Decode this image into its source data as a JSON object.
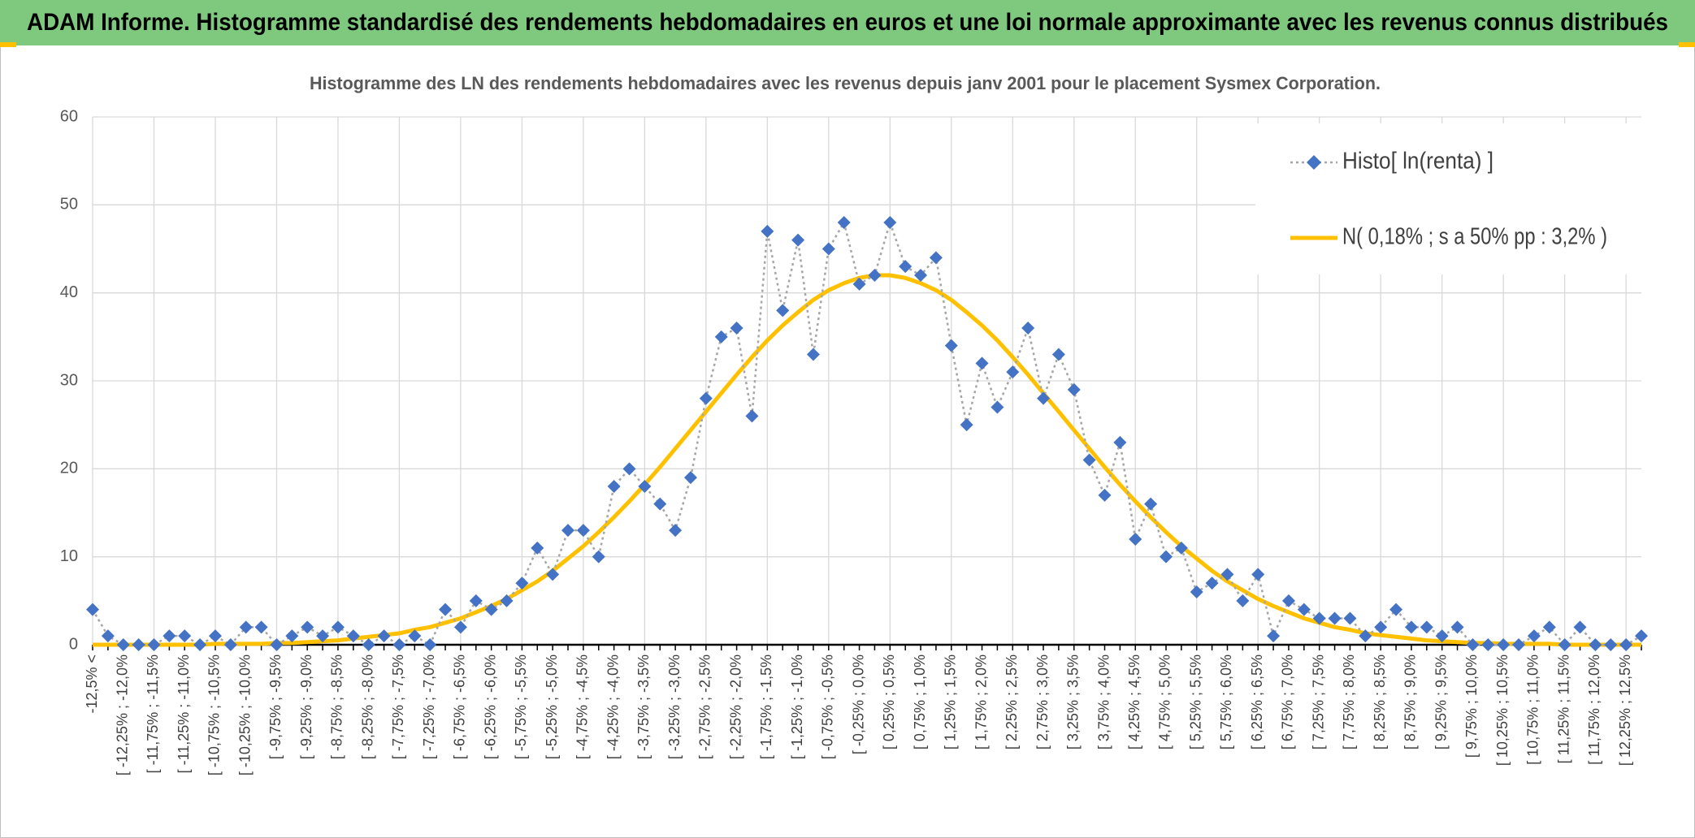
{
  "chart_data": {
    "type": "line",
    "title": "ADAM Informe. Histogramme standardisé des rendements hebdomadaires en euros et une loi normale approximante avec les revenus connus distribués",
    "subtitle": "Histogramme des LN des rendements hebdomadaires avec les revenus depuis janv 2001 pour le placement Sysmex Corporation.",
    "categories": [
      "-12,5% <",
      null,
      "[ -12,25% ; -12,0%",
      null,
      "[ -11,75% ; -11,5%",
      null,
      "[ -11,25% ; -11,0%",
      null,
      "[ -10,75% ; -10,5%",
      null,
      "[ -10,25% ; -10,0%",
      null,
      "[ -9,75% ; -9,5%",
      null,
      "[ -9,25% ; -9,0%",
      null,
      "[ -8,75% ; -8,5%",
      null,
      "[ -8,25% ; -8,0%",
      null,
      "[ -7,75% ; -7,5%",
      null,
      "[ -7,25% ; -7,0%",
      null,
      "[ -6,75% ; -6,5%",
      null,
      "[ -6,25% ; -6,0%",
      null,
      "[ -5,75% ; -5,5%",
      null,
      "[ -5,25% ; -5,0%",
      null,
      "[ -4,75% ; -4,5%",
      null,
      "[ -4,25% ; -4,0%",
      null,
      "[ -3,75% ; -3,5%",
      null,
      "[ -3,25% ; -3,0%",
      null,
      "[ -2,75% ; -2,5%",
      null,
      "[ -2,25% ; -2,0%",
      null,
      "[ -1,75% ; -1,5%",
      null,
      "[ -1,25% ; -1,0%",
      null,
      "[ -0,75% ; -0,5%",
      null,
      "[ -0,25% ; 0,0%",
      null,
      "[ 0,25% ; 0,5%",
      null,
      "[ 0,75% ; 1,0%",
      null,
      "[ 1,25% ; 1,5%",
      null,
      "[ 1,75% ; 2,0%",
      null,
      "[ 2,25% ; 2,5%",
      null,
      "[ 2,75% ; 3,0%",
      null,
      "[ 3,25% ; 3,5%",
      null,
      "[ 3,75% ; 4,0%",
      null,
      "[ 4,25% ; 4,5%",
      null,
      "[ 4,75% ; 5,0%",
      null,
      "[ 5,25% ; 5,5%",
      null,
      "[ 5,75% ; 6,0%",
      null,
      "[ 6,25% ; 6,5%",
      null,
      "[ 6,75% ; 7,0%",
      null,
      "[ 7,25% ; 7,5%",
      null,
      "[ 7,75% ; 8,0%",
      null,
      "[ 8,25% ; 8,5%",
      null,
      "[ 8,75% ; 9,0%",
      null,
      "[ 9,25% ; 9,5%",
      null,
      "[ 9,75% ; 10,0%",
      null,
      "[ 10,25% ; 10,5%",
      null,
      "[ 10,75% ; 11,0%",
      null,
      "[ 11,25% ; 11,5%",
      null,
      "[ 11,75% ; 12,0%",
      null,
      "[ 12,25% ; 12,5%",
      null
    ],
    "series": [
      {
        "name": "Histo[ ln(renta) ]",
        "color": "#4472c4",
        "line_color": "#a6a6a6",
        "line_style": "dotted",
        "marker": "diamond",
        "values": [
          4,
          1,
          0,
          0,
          0,
          1,
          1,
          0,
          1,
          0,
          2,
          2,
          0,
          1,
          2,
          1,
          2,
          1,
          0,
          1,
          0,
          1,
          0,
          4,
          2,
          5,
          4,
          5,
          7,
          11,
          8,
          13,
          13,
          10,
          18,
          20,
          18,
          16,
          13,
          19,
          28,
          35,
          36,
          26,
          47,
          38,
          46,
          33,
          45,
          48,
          41,
          42,
          48,
          43,
          42,
          44,
          34,
          25,
          32,
          27,
          31,
          36,
          28,
          33,
          29,
          21,
          17,
          23,
          12,
          16,
          10,
          11,
          6,
          7,
          8,
          5,
          8,
          1,
          5,
          4,
          3,
          3,
          3,
          1,
          2,
          4,
          2,
          2,
          1,
          2,
          0,
          0,
          0,
          0,
          1,
          2,
          0,
          2,
          0,
          0,
          0,
          1
        ]
      },
      {
        "name": "N( 0,18% ; s a 50% pp : 3,2% )",
        "color": "#ffc000",
        "line_style": "solid",
        "marker": "none",
        "values": [
          0,
          0,
          0,
          0,
          0,
          0,
          0,
          0,
          0.1,
          0.1,
          0.1,
          0.1,
          0.2,
          0.2,
          0.3,
          0.4,
          0.5,
          0.7,
          0.9,
          1.1,
          1.3,
          1.7,
          2.0,
          2.5,
          3.0,
          3.7,
          4.4,
          5.2,
          6.2,
          7.2,
          8.4,
          9.8,
          11.2,
          12.8,
          14.5,
          16.3,
          18.2,
          20.2,
          22.3,
          24.4,
          26.5,
          28.6,
          30.7,
          32.7,
          34.6,
          36.3,
          37.8,
          39.2,
          40.3,
          41.1,
          41.7,
          42.0,
          42.0,
          41.7,
          41.1,
          40.3,
          39.2,
          37.8,
          36.3,
          34.6,
          32.7,
          30.7,
          28.6,
          26.5,
          24.4,
          22.3,
          20.2,
          18.2,
          16.3,
          14.5,
          12.8,
          11.2,
          9.8,
          8.4,
          7.2,
          6.2,
          5.2,
          4.4,
          3.7,
          3.0,
          2.5,
          2.0,
          1.7,
          1.3,
          1.1,
          0.9,
          0.7,
          0.5,
          0.4,
          0.3,
          0.2,
          0.2,
          0.1,
          0.1,
          0.1,
          0.1,
          0,
          0,
          0,
          0,
          0,
          0
        ]
      }
    ],
    "ylim": [
      0,
      60
    ],
    "yticks": [
      0,
      10,
      20,
      30,
      40,
      50,
      60
    ],
    "grid": true,
    "legend": "top-right"
  }
}
